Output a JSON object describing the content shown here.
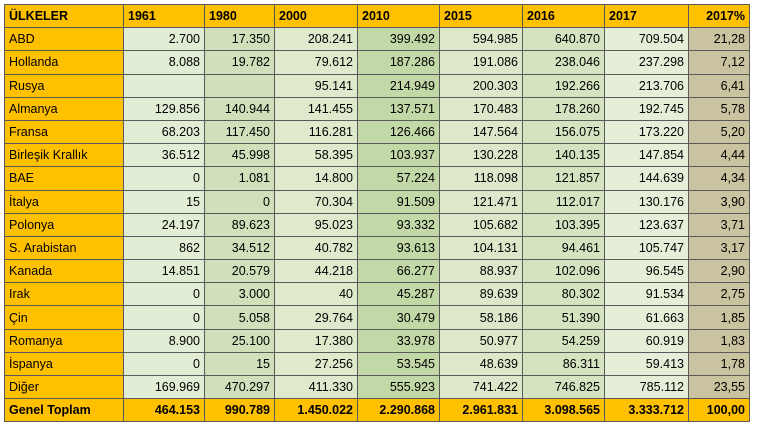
{
  "table": {
    "headers": [
      "ÜLKELER",
      "1961",
      "1980",
      "2000",
      "2010",
      "2015",
      "2016",
      "2017",
      "2017%"
    ],
    "rows": [
      [
        "ABD",
        "2.700",
        "17.350",
        "208.241",
        "399.492",
        "594.985",
        "640.870",
        "709.504",
        "21,28"
      ],
      [
        "Hollanda",
        "8.088",
        "19.782",
        "79.612",
        "187.286",
        "191.086",
        "238.046",
        "237.298",
        "7,12"
      ],
      [
        "Rusya",
        "",
        "",
        "95.141",
        "214.949",
        "200.303",
        "192.266",
        "213.706",
        "6,41"
      ],
      [
        "Almanya",
        "129.856",
        "140.944",
        "141.455",
        "137.571",
        "170.483",
        "178.260",
        "192.745",
        "5,78"
      ],
      [
        "Fransa",
        "68.203",
        "117.450",
        "116.281",
        "126.466",
        "147.564",
        "156.075",
        "173.220",
        "5,20"
      ],
      [
        "Birleşik Krallık",
        "36.512",
        "45.998",
        "58.395",
        "103.937",
        "130.228",
        "140.135",
        "147.854",
        "4,44"
      ],
      [
        "BAE",
        "0",
        "1.081",
        "14.800",
        "57.224",
        "118.098",
        "121.857",
        "144.639",
        "4,34"
      ],
      [
        "İtalya",
        "15",
        "0",
        "70.304",
        "91.509",
        "121.471",
        "112.017",
        "130.176",
        "3,90"
      ],
      [
        "Polonya",
        "24.197",
        "89.623",
        "95.023",
        "93.332",
        "105.682",
        "103.395",
        "123.637",
        "3,71"
      ],
      [
        "S. Arabistan",
        "862",
        "34.512",
        "40.782",
        "93.613",
        "104.131",
        "94.461",
        "105.747",
        "3,17"
      ],
      [
        "Kanada",
        "14.851",
        "20.579",
        "44.218",
        "66.277",
        "88.937",
        "102.096",
        "96.545",
        "2,90"
      ],
      [
        "Irak",
        "0",
        "3.000",
        "40",
        "45.287",
        "89.639",
        "80.302",
        "91.534",
        "2,75"
      ],
      [
        "Çin",
        "0",
        "5.058",
        "29.764",
        "30.479",
        "58.186",
        "51.390",
        "61.663",
        "1,85"
      ],
      [
        "Romanya",
        "8.900",
        "25.100",
        "17.380",
        "33.978",
        "50.977",
        "54.259",
        "60.919",
        "1,83"
      ],
      [
        "İspanya",
        "0",
        "15",
        "27.256",
        "53.545",
        "48.639",
        "86.311",
        "59.413",
        "1,78"
      ],
      [
        "Diğer",
        "169.969",
        "470.297",
        "411.330",
        "555.923",
        "741.422",
        "746.825",
        "785.112",
        "23,55"
      ]
    ],
    "total": [
      "Genel Toplam",
      "464.153",
      "990.789",
      "1.450.022",
      "2.290.868",
      "2.961.831",
      "3.098.565",
      "3.333.712",
      "100,00"
    ]
  },
  "colors": {
    "header_bg": "#ffc000",
    "country_bg": "#ffc000",
    "pct_bg": "#c9c39f",
    "cell_green": "#dfeacd"
  }
}
